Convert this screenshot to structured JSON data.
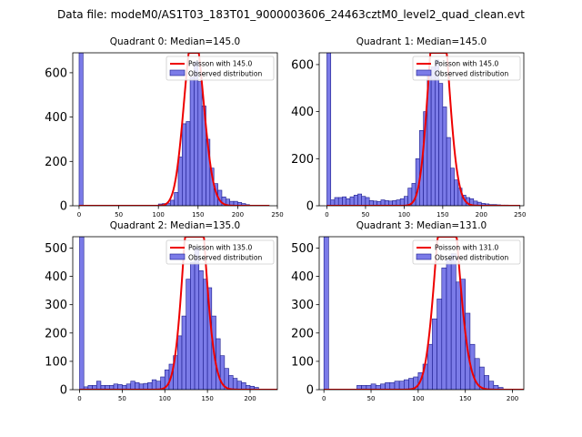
{
  "figure_title": "Data file: modeM0/AS1T03_183T01_9000003606_24463cztM0_level2_quad_clean.evt",
  "colors": {
    "bar_fill": "#7b7be8",
    "bar_edge": "#1a1a8c",
    "poisson_line": "#ee0000",
    "axis": "#000000"
  },
  "chart_data": [
    {
      "type": "bar",
      "title": "Quadrant 0: Median=145.0",
      "median": 145.0,
      "xlim": [
        -8,
        250
      ],
      "ylim": [
        0,
        690
      ],
      "xticks": [
        0,
        50,
        100,
        150,
        200,
        250
      ],
      "yticks": [
        0,
        200,
        400,
        600
      ],
      "bin_width": 5,
      "x": [
        0,
        100,
        105,
        110,
        115,
        120,
        125,
        130,
        135,
        140,
        145,
        150,
        155,
        160,
        165,
        170,
        175,
        180,
        185,
        190,
        195,
        200,
        205,
        210
      ],
      "values": [
        690,
        8,
        10,
        12,
        25,
        60,
        220,
        370,
        380,
        580,
        650,
        560,
        450,
        300,
        170,
        100,
        70,
        40,
        30,
        20,
        20,
        15,
        10,
        5
      ],
      "legend": [
        "Poisson with 145.0",
        "Observed distribution"
      ]
    },
    {
      "type": "bar",
      "title": "Quadrant 1: Median=145.0",
      "median": 145.0,
      "xlim": [
        -10,
        255
      ],
      "ylim": [
        0,
        650
      ],
      "xticks": [
        0,
        50,
        100,
        150,
        200,
        250
      ],
      "yticks": [
        0,
        200,
        400,
        600
      ],
      "bin_width": 5,
      "x": [
        0,
        5,
        10,
        15,
        20,
        25,
        30,
        35,
        40,
        45,
        50,
        55,
        60,
        65,
        70,
        75,
        80,
        85,
        90,
        95,
        100,
        105,
        110,
        115,
        120,
        125,
        130,
        135,
        140,
        145,
        150,
        155,
        160,
        165,
        170,
        175,
        180,
        185,
        190,
        195,
        200,
        205,
        210,
        215,
        220,
        225,
        230,
        235,
        240,
        245
      ],
      "values": [
        650,
        25,
        35,
        35,
        38,
        30,
        38,
        45,
        50,
        40,
        35,
        22,
        20,
        18,
        25,
        22,
        20,
        22,
        25,
        30,
        40,
        75,
        95,
        200,
        320,
        400,
        560,
        590,
        620,
        520,
        420,
        290,
        160,
        110,
        75,
        45,
        35,
        30,
        20,
        15,
        10,
        8,
        5,
        5,
        4,
        3,
        3,
        2,
        2,
        2
      ],
      "legend": [
        "Poisson with 145.0",
        "Observed distribution"
      ]
    },
    {
      "type": "bar",
      "title": "Quadrant 2: Median=135.0",
      "median": 135.0,
      "xlim": [
        -8,
        232
      ],
      "ylim": [
        0,
        540
      ],
      "xticks": [
        0,
        50,
        100,
        150,
        200
      ],
      "yticks": [
        0,
        100,
        200,
        300,
        400,
        500
      ],
      "bin_width": 5,
      "x": [
        0,
        5,
        10,
        15,
        20,
        25,
        30,
        35,
        40,
        45,
        50,
        55,
        60,
        65,
        70,
        75,
        80,
        85,
        90,
        95,
        100,
        105,
        110,
        115,
        120,
        125,
        130,
        135,
        140,
        145,
        150,
        155,
        160,
        165,
        170,
        175,
        180,
        185,
        190,
        195,
        200,
        205
      ],
      "values": [
        540,
        10,
        15,
        15,
        30,
        15,
        15,
        15,
        20,
        18,
        15,
        20,
        30,
        25,
        20,
        22,
        25,
        35,
        30,
        45,
        70,
        90,
        120,
        190,
        260,
        390,
        450,
        500,
        420,
        390,
        360,
        260,
        180,
        120,
        75,
        50,
        40,
        30,
        25,
        15,
        12,
        8
      ],
      "legend": [
        "Poisson with 135.0",
        "Observed distribution"
      ]
    },
    {
      "type": "bar",
      "title": "Quadrant 3: Median=131.0",
      "median": 131.0,
      "xlim": [
        -5,
        212
      ],
      "ylim": [
        0,
        540
      ],
      "xticks": [
        0,
        50,
        100,
        150,
        200
      ],
      "yticks": [
        0,
        100,
        200,
        300,
        400,
        500
      ],
      "bin_width": 5,
      "x": [
        0,
        35,
        40,
        45,
        50,
        55,
        60,
        65,
        70,
        75,
        80,
        85,
        90,
        95,
        100,
        105,
        110,
        115,
        120,
        125,
        130,
        135,
        140,
        145,
        150,
        155,
        160,
        165,
        170,
        175,
        180,
        185
      ],
      "values": [
        540,
        15,
        15,
        15,
        20,
        15,
        20,
        25,
        25,
        30,
        30,
        35,
        40,
        45,
        60,
        90,
        160,
        250,
        320,
        430,
        460,
        480,
        380,
        390,
        270,
        160,
        110,
        80,
        50,
        30,
        15,
        8
      ],
      "legend": [
        "Poisson with 131.0",
        "Observed distribution"
      ]
    }
  ]
}
